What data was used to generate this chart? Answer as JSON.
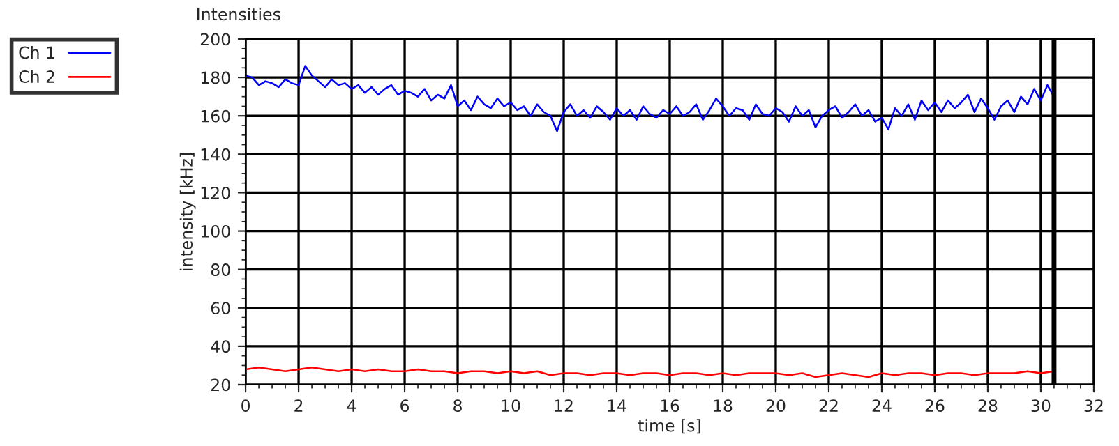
{
  "chart_data": {
    "type": "line",
    "title": "Intensities",
    "xlabel": "time [s]",
    "ylabel": "intensity [kHz]",
    "xlim": [
      0,
      32
    ],
    "xticks": [
      0,
      2,
      4,
      6,
      8,
      10,
      12,
      14,
      16,
      18,
      20,
      22,
      24,
      26,
      28,
      30,
      32
    ],
    "ylim": [
      20,
      200
    ],
    "yticks": [
      20,
      40,
      60,
      80,
      100,
      120,
      140,
      160,
      180,
      200
    ],
    "grid": true,
    "legend": "top left",
    "marker": "none",
    "line_style": "solid",
    "ref_lines": [
      {
        "axis": "x",
        "value": 30.5,
        "color": "#000000"
      }
    ],
    "series": [
      {
        "name": "Ch 1",
        "color": "#0000ff",
        "x": [
          0,
          0.25,
          0.5,
          0.75,
          1,
          1.25,
          1.5,
          1.75,
          2,
          2.25,
          2.5,
          2.75,
          3,
          3.25,
          3.5,
          3.75,
          4,
          4.25,
          4.5,
          4.75,
          5,
          5.25,
          5.5,
          5.75,
          6,
          6.25,
          6.5,
          6.75,
          7,
          7.25,
          7.5,
          7.75,
          8,
          8.25,
          8.5,
          8.75,
          9,
          9.25,
          9.5,
          9.75,
          10,
          10.25,
          10.5,
          10.75,
          11,
          11.25,
          11.5,
          11.75,
          12,
          12.25,
          12.5,
          12.75,
          13,
          13.25,
          13.5,
          13.75,
          14,
          14.25,
          14.5,
          14.75,
          15,
          15.25,
          15.5,
          15.75,
          16,
          16.25,
          16.5,
          16.75,
          17,
          17.25,
          17.5,
          17.75,
          18,
          18.25,
          18.5,
          18.75,
          19,
          19.25,
          19.5,
          19.75,
          20,
          20.25,
          20.5,
          20.75,
          21,
          21.25,
          21.5,
          21.75,
          22,
          22.25,
          22.5,
          22.75,
          23,
          23.25,
          23.5,
          23.75,
          24,
          24.25,
          24.5,
          24.75,
          25,
          25.25,
          25.5,
          25.75,
          26,
          26.25,
          26.5,
          26.75,
          27,
          27.25,
          27.5,
          27.75,
          28,
          28.25,
          28.5,
          28.75,
          29,
          29.25,
          29.5,
          29.75,
          30,
          30.25,
          30.5
        ],
        "values": [
          181,
          180,
          176,
          178,
          177,
          175,
          179,
          177,
          176,
          186,
          181,
          178,
          175,
          179,
          176,
          177,
          174,
          176,
          172,
          175,
          171,
          174,
          176,
          171,
          173,
          172,
          170,
          174,
          168,
          171,
          169,
          176,
          165,
          168,
          163,
          170,
          166,
          164,
          169,
          165,
          167,
          163,
          165,
          160,
          166,
          162,
          160,
          152,
          162,
          166,
          160,
          163,
          159,
          165,
          162,
          158,
          164,
          160,
          163,
          158,
          165,
          161,
          159,
          163,
          161,
          165,
          160,
          162,
          166,
          158,
          163,
          169,
          165,
          160,
          164,
          163,
          158,
          166,
          161,
          160,
          164,
          162,
          157,
          165,
          160,
          163,
          154,
          160,
          163,
          165,
          159,
          162,
          166,
          160,
          163,
          157,
          159,
          153,
          164,
          160,
          166,
          158,
          168,
          163,
          167,
          162,
          168,
          164,
          167,
          171,
          162,
          169,
          164,
          158,
          165,
          168,
          162,
          170,
          166,
          174,
          168,
          176,
          170
        ]
      },
      {
        "name": "Ch 2",
        "color": "#ff0000",
        "x": [
          0,
          0.5,
          1,
          1.5,
          2,
          2.5,
          3,
          3.5,
          4,
          4.5,
          5,
          5.5,
          6,
          6.5,
          7,
          7.5,
          8,
          8.5,
          9,
          9.5,
          10,
          10.5,
          11,
          11.5,
          12,
          12.5,
          13,
          13.5,
          14,
          14.5,
          15,
          15.5,
          16,
          16.5,
          17,
          17.5,
          18,
          18.5,
          19,
          19.5,
          20,
          20.5,
          21,
          21.5,
          22,
          22.5,
          23,
          23.5,
          24,
          24.5,
          25,
          25.5,
          26,
          26.5,
          27,
          27.5,
          28,
          28.5,
          29,
          29.5,
          30,
          30.5
        ],
        "values": [
          28,
          29,
          28,
          27,
          28,
          29,
          28,
          27,
          28,
          27,
          28,
          27,
          27,
          28,
          27,
          27,
          26,
          27,
          27,
          26,
          27,
          26,
          27,
          25,
          26,
          26,
          25,
          26,
          26,
          25,
          26,
          26,
          25,
          26,
          26,
          25,
          26,
          25,
          26,
          26,
          26,
          25,
          26,
          24,
          25,
          26,
          25,
          24,
          26,
          25,
          26,
          26,
          25,
          26,
          26,
          25,
          26,
          26,
          26,
          27,
          26,
          27
        ]
      }
    ]
  }
}
